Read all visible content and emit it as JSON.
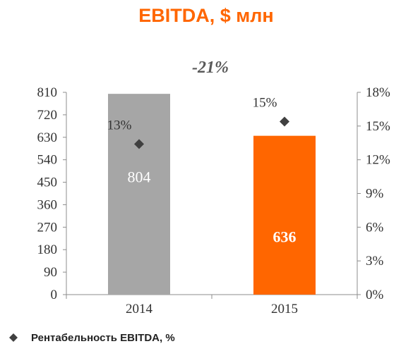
{
  "chart_data": {
    "type": "bar",
    "title": "EBITDA, $ млн",
    "change_label": "-21%",
    "categories": [
      "2014",
      "2015"
    ],
    "series": [
      {
        "values": [
          804,
          636
        ],
        "value_labels": [
          "804",
          "636"
        ],
        "colors": [
          "#a6a6a6",
          "#ff6600"
        ]
      },
      {
        "name": "Рентабельность EBITDA, %",
        "axis": "right",
        "type": "scatter",
        "marker": "diamond",
        "values": [
          13.4,
          15.4
        ],
        "value_labels": [
          "13%",
          "15%"
        ],
        "color": "#404040"
      }
    ],
    "ylim": [
      0,
      810
    ],
    "yticks": [
      "0",
      "90",
      "180",
      "270",
      "360",
      "450",
      "540",
      "630",
      "720",
      "810"
    ],
    "y2lim": [
      0,
      18
    ],
    "y2ticks": [
      "0%",
      "3%",
      "6%",
      "9%",
      "12%",
      "15%",
      "18%"
    ],
    "grid": false,
    "legend_position": "bottom-left"
  },
  "colors": {
    "accent": "#ff6600",
    "title": "#ff6600",
    "axis": "#8c8c8c"
  }
}
